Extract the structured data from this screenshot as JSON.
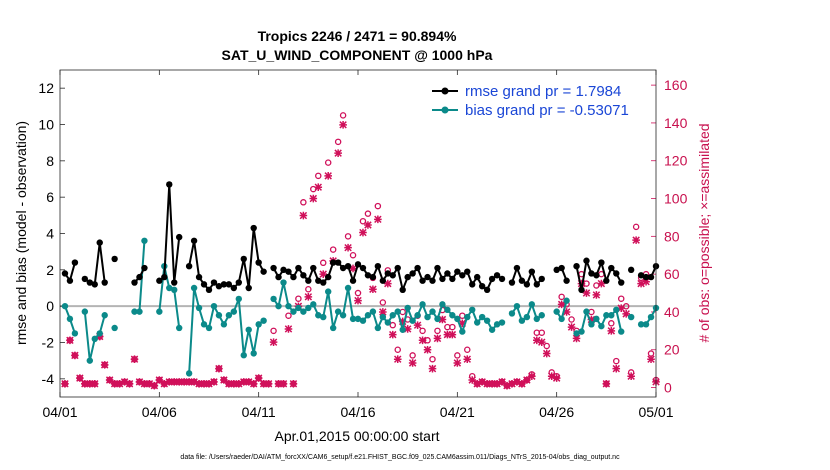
{
  "colors": {
    "rmse": "#000000",
    "bias": "#0b8a8a",
    "obs": "#d0105a",
    "zero_line": "#b4b4b4",
    "legend_text": "#1a46d6"
  },
  "footer": "data file: /Users/raeder/DAI/ATM_forcXX/CAM6_setup/f.e21.FHIST_BGC.f09_025.CAM6assim.011/Diags_NTrS_2015-04/obs_diag_output.nc",
  "chart_data": {
    "type": "line",
    "title": "Tropics 2246 / 2471 = 90.894%",
    "subtitle": "SAT_U_WIND_COMPONENT @ 1000 hPa",
    "xlabel": "Apr.01,2015 00:00:00 start",
    "ylabel": "rmse and bias (model - observation)",
    "ylabel_right": "# of obs: o=possible; ×=assimilated",
    "xlim": [
      0,
      30
    ],
    "ylim": [
      -5,
      13
    ],
    "ylim_right": [
      -5,
      168
    ],
    "x_ticks": [
      0,
      5,
      10,
      15,
      20,
      25,
      30
    ],
    "x_tick_labels": [
      "04/01",
      "04/06",
      "04/11",
      "04/16",
      "04/21",
      "04/26",
      "05/01"
    ],
    "y_ticks": [
      -4,
      -2,
      0,
      2,
      4,
      6,
      8,
      10,
      12
    ],
    "y_tick_labels": [
      "-4",
      "-2",
      "0",
      "2",
      "4",
      "6",
      "8",
      "10",
      "12"
    ],
    "y2_ticks": [
      0,
      20,
      40,
      60,
      80,
      100,
      120,
      140,
      160
    ],
    "y2_tick_labels": [
      "0",
      "20",
      "40",
      "60",
      "80",
      "100",
      "120",
      "140",
      "160"
    ],
    "legend": [
      "rmse grand pr = 1.7984",
      "bias grand pr = -0.53071"
    ],
    "x": [
      0.25,
      0.5,
      0.75,
      1.0,
      1.25,
      1.5,
      1.75,
      2.0,
      2.25,
      2.5,
      2.75,
      3.0,
      3.25,
      3.5,
      3.75,
      4.0,
      4.25,
      4.5,
      4.75,
      5.0,
      5.25,
      5.5,
      5.75,
      6.0,
      6.25,
      6.5,
      6.75,
      7.0,
      7.25,
      7.5,
      7.75,
      8.0,
      8.25,
      8.5,
      8.75,
      9.0,
      9.25,
      9.5,
      9.75,
      10.0,
      10.25,
      10.5,
      10.75,
      11.0,
      11.25,
      11.5,
      11.75,
      12.0,
      12.25,
      12.5,
      12.75,
      13.0,
      13.25,
      13.5,
      13.75,
      14.0,
      14.25,
      14.5,
      14.75,
      15.0,
      15.25,
      15.5,
      15.75,
      16.0,
      16.25,
      16.5,
      16.75,
      17.0,
      17.25,
      17.5,
      17.75,
      18.0,
      18.25,
      18.5,
      18.75,
      19.0,
      19.25,
      19.5,
      19.75,
      20.0,
      20.25,
      20.5,
      20.75,
      21.0,
      21.25,
      21.5,
      21.75,
      22.0,
      22.25,
      22.5,
      22.75,
      23.0,
      23.25,
      23.5,
      23.75,
      24.0,
      24.25,
      24.5,
      24.75,
      25.0,
      25.25,
      25.5,
      25.75,
      26.0,
      26.25,
      26.5,
      26.75,
      27.0,
      27.25,
      27.5,
      27.75,
      28.0,
      28.25,
      28.5,
      28.75,
      29.0,
      29.25,
      29.5,
      29.75,
      30.0
    ],
    "series": [
      {
        "name": "rmse",
        "values": [
          1.8,
          1.4,
          2.4,
          null,
          1.5,
          1.3,
          1.2,
          3.5,
          1.3,
          null,
          2.6,
          null,
          null,
          null,
          1.3,
          1.6,
          2.1,
          null,
          null,
          1.4,
          1.6,
          6.7,
          1.3,
          3.8,
          null,
          2.2,
          3.6,
          1.6,
          1.2,
          0.9,
          1.3,
          1.1,
          1.2,
          1.2,
          1.0,
          1.3,
          2.6,
          1.0,
          4.3,
          2.4,
          1.9,
          null,
          2.1,
          1.6,
          2.0,
          1.9,
          1.6,
          2.1,
          1.7,
          1.4,
          2.1,
          1.4,
          1.3,
          1.6,
          2.4,
          2.4,
          2.1,
          2.2,
          1.4,
          2.3,
          2.1,
          1.7,
          1.6,
          2.2,
          1.4,
          1.8,
          1.7,
          2.1,
          0.9,
          1.6,
          1.8,
          2.1,
          1.4,
          1.6,
          1.4,
          2.1,
          1.5,
          1.8,
          1.5,
          1.9,
          1.7,
          1.9,
          1.2,
          1.6,
          1.1,
          0.9,
          1.5,
          1.7,
          1.5,
          null,
          1.3,
          2.1,
          1.4,
          1.2,
          1.9,
          1.2,
          1.5,
          null,
          null,
          2.0,
          2.1,
          1.4,
          null,
          2.2,
          0.9,
          2.5,
          1.8,
          1.7,
          2.4,
          1.4,
          2.1,
          1.8,
          1.3,
          null,
          2.0,
          null,
          1.7,
          1.6,
          1.6,
          2.2
        ]
      },
      {
        "name": "bias",
        "values": [
          0.0,
          -0.7,
          -1.5,
          null,
          -0.3,
          -3.0,
          -1.8,
          -1.5,
          -0.5,
          null,
          -1.2,
          null,
          null,
          null,
          -0.3,
          -0.3,
          3.6,
          null,
          null,
          -0.3,
          2.2,
          1.0,
          0.9,
          -1.2,
          null,
          -3.7,
          1.0,
          -0.1,
          -1.0,
          -1.2,
          0.0,
          -0.5,
          -1.0,
          -0.5,
          -0.3,
          0.4,
          -2.7,
          -1.3,
          -2.6,
          -1.0,
          -0.8,
          null,
          0.4,
          0.0,
          1.3,
          0.0,
          -0.3,
          -0.1,
          -0.3,
          -0.1,
          0.1,
          -0.5,
          -0.6,
          0.8,
          -1.2,
          -0.3,
          -0.5,
          1.0,
          -0.7,
          -0.7,
          -0.8,
          -0.5,
          -0.3,
          -1.2,
          -0.6,
          -0.9,
          -0.5,
          -0.3,
          -1.3,
          -0.1,
          -0.8,
          -0.5,
          0.1,
          -0.6,
          -0.3,
          -0.7,
          0.1,
          -0.2,
          -0.5,
          -0.7,
          -1.4,
          -0.6,
          -0.2,
          -0.9,
          -0.6,
          -0.8,
          -1.3,
          -1.0,
          -0.9,
          null,
          -0.4,
          0.0,
          -0.8,
          -0.6,
          0.1,
          -0.7,
          -0.5,
          null,
          null,
          -0.3,
          -0.7,
          0.3,
          null,
          -1.5,
          -1.4,
          -0.3,
          -1.0,
          -0.7,
          -1.1,
          -0.5,
          -0.5,
          -0.2,
          -1.4,
          null,
          -0.6,
          null,
          -1.0,
          -1.0,
          -0.6,
          -0.1
        ]
      },
      {
        "name": "obs_possible",
        "values": [
          2,
          25,
          17,
          5,
          2,
          2,
          2,
          27,
          12,
          4,
          2,
          2,
          3,
          2,
          15,
          3,
          2,
          2,
          1,
          4,
          2,
          3,
          3,
          3,
          3,
          3,
          3,
          2,
          2,
          2,
          3,
          10,
          4,
          2,
          2,
          2,
          3,
          3,
          2,
          5,
          2,
          2,
          30,
          2,
          2,
          38,
          2,
          47,
          98,
          52,
          105,
          112,
          66,
          119,
          73,
          130,
          144,
          80,
          70,
          50,
          88,
          92,
          58,
          96,
          45,
          62,
          33,
          20,
          40,
          36,
          17,
          38,
          30,
          25,
          15,
          30,
          41,
          32,
          32,
          17,
          38,
          20,
          6,
          2,
          3,
          2,
          2,
          2,
          3,
          1,
          2,
          3,
          2,
          4,
          7,
          29,
          29,
          22,
          8,
          6,
          48,
          44,
          36,
          30,
          60,
          55,
          40,
          54,
          60,
          2,
          34,
          14,
          47,
          43,
          8,
          85,
          58,
          60,
          18,
          4
        ]
      },
      {
        "name": "obs_assimilated",
        "values": [
          2,
          25,
          17,
          5,
          2,
          2,
          2,
          27,
          12,
          4,
          2,
          2,
          3,
          2,
          15,
          3,
          2,
          2,
          1,
          4,
          2,
          3,
          3,
          3,
          3,
          3,
          3,
          2,
          2,
          2,
          3,
          10,
          4,
          2,
          2,
          2,
          3,
          3,
          2,
          5,
          2,
          2,
          24,
          2,
          2,
          31,
          2,
          43,
          91,
          48,
          100,
          106,
          60,
          112,
          67,
          124,
          139,
          74,
          63,
          46,
          82,
          86,
          52,
          89,
          40,
          55,
          28,
          15,
          35,
          31,
          13,
          33,
          25,
          20,
          10,
          26,
          36,
          28,
          28,
          13,
          34,
          15,
          4,
          2,
          3,
          2,
          2,
          2,
          3,
          1,
          2,
          3,
          2,
          4,
          6,
          25,
          24,
          18,
          6,
          5,
          44,
          40,
          32,
          26,
          55,
          50,
          36,
          49,
          55,
          2,
          30,
          10,
          42,
          39,
          6,
          78,
          55,
          56,
          15,
          3
        ]
      }
    ]
  }
}
